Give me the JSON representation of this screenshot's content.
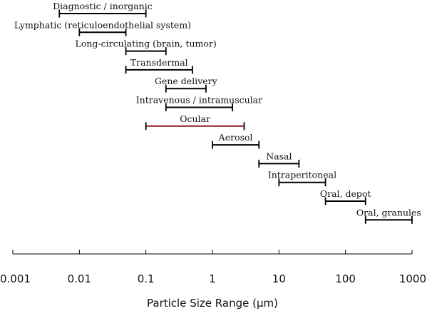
{
  "chart_data": {
    "type": "range",
    "xlabel": "Particle Size Range (μm)",
    "xscale": "log",
    "xlim": [
      0.001,
      1000
    ],
    "xticks": [
      {
        "value": 0.001,
        "label": "0.001"
      },
      {
        "value": 0.01,
        "label": "0.01"
      },
      {
        "value": 0.1,
        "label": "0.1"
      },
      {
        "value": 1,
        "label": "1"
      },
      {
        "value": 10,
        "label": "10"
      },
      {
        "value": 100,
        "label": "100"
      },
      {
        "value": 1000,
        "label": "1000"
      }
    ],
    "grid": false,
    "ranges": [
      {
        "label": "Diagnostic / inorganic",
        "min": 0.005,
        "max": 0.1,
        "color": "#000000"
      },
      {
        "label": "Lymphatic (reticuloendothelial system)",
        "min": 0.01,
        "max": 0.05,
        "color": "#000000"
      },
      {
        "label": "Long-circulating (brain, tumor)",
        "min": 0.05,
        "max": 0.2,
        "color": "#000000"
      },
      {
        "label": "Transdermal",
        "min": 0.05,
        "max": 0.5,
        "color": "#000000"
      },
      {
        "label": "Gene delivery",
        "min": 0.2,
        "max": 0.8,
        "color": "#000000"
      },
      {
        "label": "Intravenous / intramuscular",
        "min": 0.2,
        "max": 2,
        "color": "#000000"
      },
      {
        "label": "Ocular",
        "min": 0.1,
        "max": 3,
        "color": "#8b1a1a"
      },
      {
        "label": "Aerosol",
        "min": 1,
        "max": 5,
        "color": "#000000"
      },
      {
        "label": "Nasal",
        "min": 5,
        "max": 20,
        "color": "#000000"
      },
      {
        "label": "Intraperitoneal",
        "min": 10,
        "max": 50,
        "color": "#000000"
      },
      {
        "label": "Oral, depot",
        "min": 50,
        "max": 200,
        "color": "#000000"
      },
      {
        "label": "Oral, granules",
        "min": 200,
        "max": 1000,
        "color": "#000000"
      }
    ]
  }
}
